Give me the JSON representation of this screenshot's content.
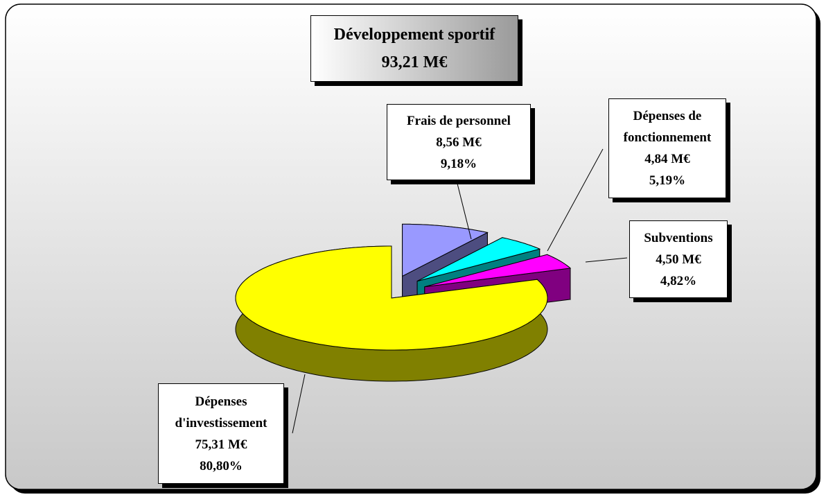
{
  "chart_data": {
    "type": "pie3d",
    "title": "Développement sportif",
    "subtitle": "93,21 M€",
    "categories": [
      "Frais de personnel",
      "Dépenses de fonctionnement",
      "Subventions",
      "Dépenses d'investissement"
    ],
    "values": [
      9.18,
      5.19,
      4.82,
      80.8
    ],
    "value_labels": [
      "9,18%",
      "5,19%",
      "4,82%",
      "80,80%"
    ],
    "amount_labels": [
      "8,56 M€",
      "4,84 M€",
      "4,50 M€",
      "75,31 M€"
    ],
    "colors": [
      "#9999ff",
      "#00ffff",
      "#ff00ff",
      "#ffff00"
    ],
    "side_colors": [
      "#4d4d80",
      "#008080",
      "#800080",
      "#808000"
    ]
  }
}
